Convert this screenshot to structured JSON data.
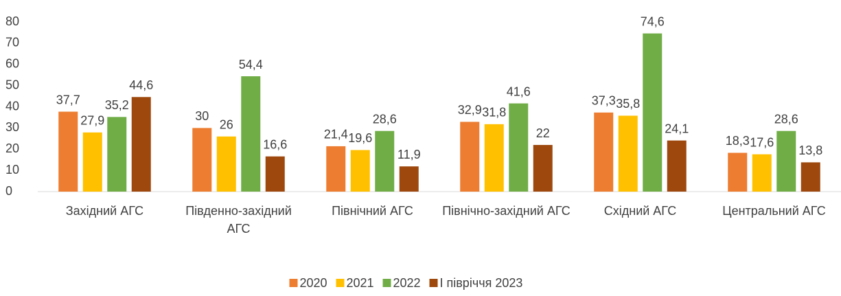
{
  "chart_data": {
    "type": "bar",
    "categories": [
      "Західний АГС",
      "Південно-західний АГС",
      "Північний АГС",
      "Північно-західний АГС",
      "Східний АГС",
      "Центральний АГС"
    ],
    "series": [
      {
        "name": "2020",
        "color": "#ed7d31",
        "values": [
          37.7,
          30,
          21.4,
          32.9,
          37.3,
          18.3
        ],
        "value_labels": [
          "37,7",
          "30",
          "21,4",
          "32,9",
          "37,3",
          "18,3"
        ]
      },
      {
        "name": "2021",
        "color": "#ffc000",
        "values": [
          27.9,
          26,
          19.6,
          31.8,
          35.8,
          17.6
        ],
        "value_labels": [
          "27,9",
          "26",
          "19,6",
          "31,8",
          "35,8",
          "17,6"
        ]
      },
      {
        "name": "2022",
        "color": "#70ad47",
        "values": [
          35.2,
          54.4,
          28.6,
          41.6,
          74.6,
          28.6
        ],
        "value_labels": [
          "35,2",
          "54,4",
          "28,6",
          "41,6",
          "74,6",
          "28,6"
        ]
      },
      {
        "name": "I півріччя 2023",
        "color": "#9e480e",
        "values": [
          44.6,
          16.6,
          11.9,
          22,
          24.1,
          13.8
        ],
        "value_labels": [
          "44,6",
          "16,6",
          "11,9",
          "22",
          "24,1",
          "13,8"
        ]
      }
    ],
    "ylim": [
      0,
      80
    ],
    "yticks": [
      0,
      10,
      20,
      30,
      40,
      50,
      60,
      70,
      80
    ],
    "grid": false,
    "legend": "bottom"
  }
}
